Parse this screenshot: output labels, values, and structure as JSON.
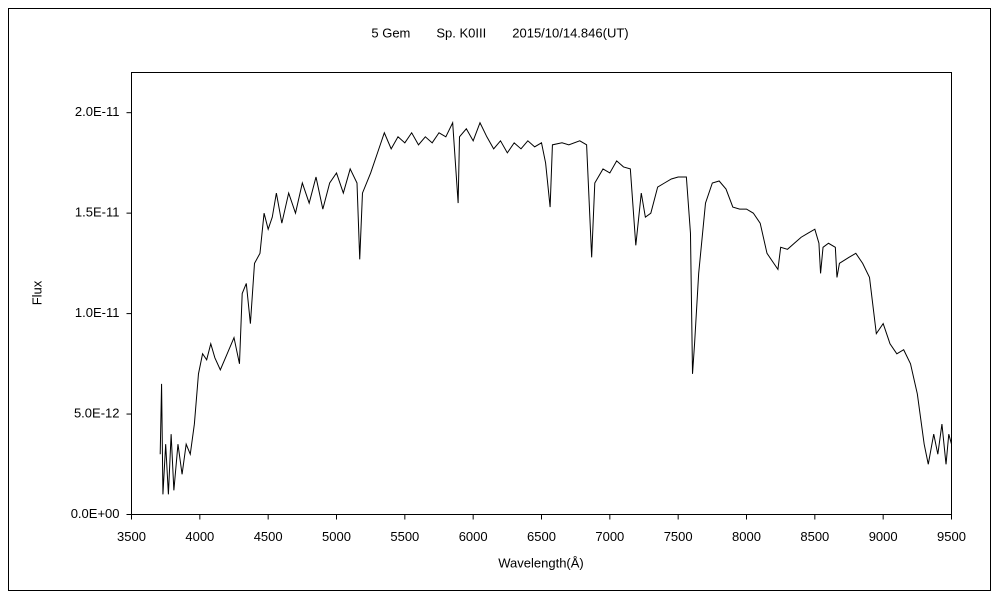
{
  "chart_data": {
    "type": "line",
    "title": "5 Gem　　Sp. K0III　　2015/10/14.846(UT)",
    "xlabel": "Wavelength(Å)",
    "ylabel": "Flux",
    "xlim": [
      3500,
      9500
    ],
    "xticks": [
      3500,
      4000,
      4500,
      5000,
      5500,
      6000,
      6500,
      7000,
      7500,
      8000,
      8500,
      9000,
      9500
    ],
    "ylim": [
      0,
      2.2e-11
    ],
    "yticks": [
      {
        "value": 0,
        "label": "0.0E+00"
      },
      {
        "value": 5e-12,
        "label": "5.0E-12"
      },
      {
        "value": 1e-11,
        "label": "1.0E-11"
      },
      {
        "value": 1.5e-11,
        "label": "1.5E-11"
      },
      {
        "value": 2e-11,
        "label": "2.0E-11"
      }
    ],
    "grid": false,
    "series": [
      {
        "color": "#000000",
        "x": [
          3710,
          3720,
          3730,
          3750,
          3770,
          3790,
          3810,
          3840,
          3870,
          3900,
          3930,
          3960,
          3990,
          4020,
          4050,
          4080,
          4110,
          4150,
          4200,
          4250,
          4290,
          4310,
          4340,
          4370,
          4400,
          4440,
          4470,
          4500,
          4530,
          4560,
          4600,
          4650,
          4700,
          4750,
          4800,
          4850,
          4900,
          4950,
          5000,
          5050,
          5100,
          5150,
          5170,
          5190,
          5250,
          5300,
          5350,
          5400,
          5450,
          5500,
          5550,
          5600,
          5650,
          5700,
          5750,
          5800,
          5850,
          5890,
          5900,
          5950,
          6000,
          6050,
          6100,
          6150,
          6200,
          6250,
          6300,
          6350,
          6400,
          6450,
          6500,
          6530,
          6563,
          6580,
          6650,
          6700,
          6780,
          6830,
          6867,
          6890,
          6950,
          7000,
          7050,
          7100,
          7150,
          7190,
          7230,
          7260,
          7300,
          7350,
          7400,
          7450,
          7500,
          7560,
          7590,
          7605,
          7620,
          7650,
          7700,
          7750,
          7800,
          7850,
          7900,
          7950,
          8000,
          8050,
          8100,
          8150,
          8200,
          8230,
          8250,
          8300,
          8350,
          8400,
          8450,
          8500,
          8530,
          8542,
          8560,
          8600,
          8650,
          8662,
          8680,
          8750,
          8800,
          8850,
          8900,
          8950,
          9000,
          9050,
          9100,
          9150,
          9200,
          9250,
          9280,
          9300,
          9330,
          9370,
          9400,
          9430,
          9460,
          9480,
          9500
        ],
        "values": [
          3e-12,
          6.5e-12,
          1e-12,
          3.5e-12,
          1e-12,
          4e-12,
          1.2e-12,
          3.5e-12,
          2e-12,
          3.5e-12,
          3e-12,
          4.5e-12,
          7e-12,
          8e-12,
          7.7e-12,
          8.5e-12,
          7.8e-12,
          7.2e-12,
          8e-12,
          8.8e-12,
          7.5e-12,
          1.1e-11,
          1.15e-11,
          9.5e-12,
          1.25e-11,
          1.3e-11,
          1.5e-11,
          1.42e-11,
          1.48e-11,
          1.6e-11,
          1.45e-11,
          1.6e-11,
          1.5e-11,
          1.65e-11,
          1.55e-11,
          1.68e-11,
          1.52e-11,
          1.65e-11,
          1.7e-11,
          1.6e-11,
          1.72e-11,
          1.65e-11,
          1.27e-11,
          1.6e-11,
          1.7e-11,
          1.8e-11,
          1.9e-11,
          1.82e-11,
          1.88e-11,
          1.85e-11,
          1.9e-11,
          1.84e-11,
          1.88e-11,
          1.85e-11,
          1.9e-11,
          1.88e-11,
          1.95e-11,
          1.55e-11,
          1.88e-11,
          1.92e-11,
          1.86e-11,
          1.95e-11,
          1.88e-11,
          1.82e-11,
          1.86e-11,
          1.8e-11,
          1.85e-11,
          1.82e-11,
          1.86e-11,
          1.83e-11,
          1.85e-11,
          1.75e-11,
          1.53e-11,
          1.84e-11,
          1.85e-11,
          1.84e-11,
          1.86e-11,
          1.84e-11,
          1.28e-11,
          1.65e-11,
          1.72e-11,
          1.7e-11,
          1.76e-11,
          1.73e-11,
          1.72e-11,
          1.34e-11,
          1.6e-11,
          1.48e-11,
          1.5e-11,
          1.63e-11,
          1.65e-11,
          1.67e-11,
          1.68e-11,
          1.68e-11,
          1.4e-11,
          7e-12,
          8.5e-12,
          1.2e-11,
          1.55e-11,
          1.65e-11,
          1.66e-11,
          1.62e-11,
          1.53e-11,
          1.52e-11,
          1.52e-11,
          1.5e-11,
          1.45e-11,
          1.3e-11,
          1.25e-11,
          1.22e-11,
          1.33e-11,
          1.32e-11,
          1.35e-11,
          1.38e-11,
          1.4e-11,
          1.42e-11,
          1.35e-11,
          1.2e-11,
          1.33e-11,
          1.35e-11,
          1.33e-11,
          1.18e-11,
          1.25e-11,
          1.28e-11,
          1.3e-11,
          1.25e-11,
          1.18e-11,
          9e-12,
          9.5e-12,
          8.5e-12,
          8e-12,
          8.2e-12,
          7.5e-12,
          6e-12,
          4.5e-12,
          3.5e-12,
          2.5e-12,
          4e-12,
          3e-12,
          4.5e-12,
          2.5e-12,
          4e-12,
          3.5e-12
        ]
      }
    ]
  }
}
